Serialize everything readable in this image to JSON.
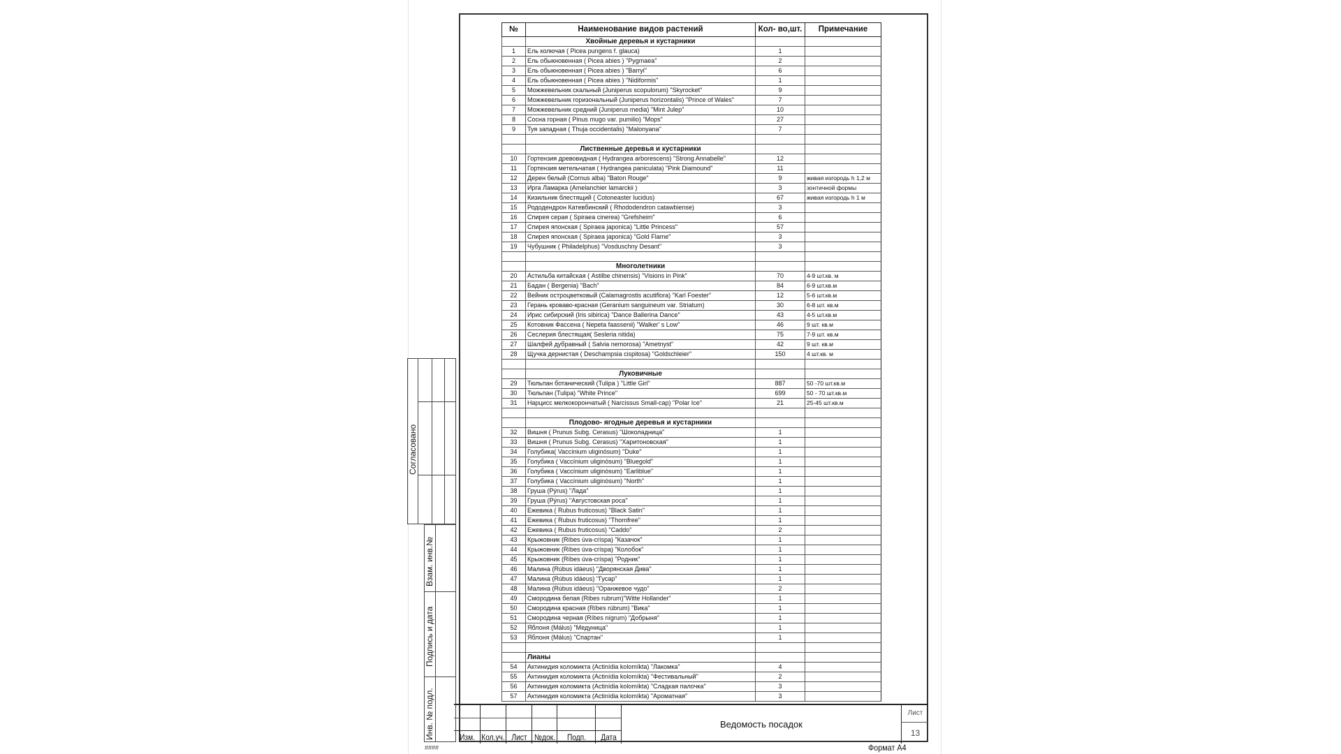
{
  "table": {
    "headers": {
      "num": "№",
      "name": "Наименование видов растений",
      "qty": "Кол- во,шт.",
      "note": "Примечание"
    },
    "sections": [
      {
        "title": "Хвойные деревья и кустарники",
        "align": "center",
        "rows": [
          [
            "1",
            "Ель колючая ( Picea pungens f. glauca)",
            "1",
            ""
          ],
          [
            "2",
            "Ель обыкновенная ( Picea abies ) \"Pygmaea\"",
            "2",
            ""
          ],
          [
            "3",
            "Ель обыкновенная ( Picea abies ) \"Barryi\"",
            "6",
            ""
          ],
          [
            "4",
            "Ель обыкновенная ( Picea abies ) \"Nidiformis\"",
            "1",
            ""
          ],
          [
            "5",
            "Можжевельник скальный (Juniperus scopulorum) \"Skyrocket\"",
            "9",
            ""
          ],
          [
            "6",
            "Можжевельник горизональный (Juniperus horizontalis) \"Prince of Wales\"",
            "7",
            ""
          ],
          [
            "7",
            "Можжевельник средний (Juniperus media) \"Mint Julep\"",
            "10",
            ""
          ],
          [
            "8",
            "Сосна горная ( Pinus mugo var. pumilio) \"Mops\"",
            "27",
            ""
          ],
          [
            "9",
            "Туя западная ( Thuja occidentalis) \"Malonyana\"",
            "7",
            ""
          ]
        ]
      },
      {
        "title": "Лиственные деревья и кустарники",
        "align": "center",
        "rows": [
          [
            "10",
            "Гортензия древовидная ( Hydrangea arborescens) \"Strong Annabelle\"",
            "12",
            ""
          ],
          [
            "11",
            "Гортензия метельчатая ( Hydrangea paniculata) \"Pink Diamound\"",
            "11",
            ""
          ],
          [
            "12",
            "Дерен белый (Cornus alba) \"Baton Rouge\"",
            "9",
            "живая изгородь h 1,2 м"
          ],
          [
            "13",
            "Ирга Ламарка (Amelanchier lamarckii )",
            "3",
            "зонтичной формы"
          ],
          [
            "14",
            "Кизильник блестящий ( Cotoneaster lucidus)",
            "67",
            "живая изгородь h 1 м"
          ],
          [
            "15",
            "Рододендрон Катевбинский  ( Rhododendron catawbiense)",
            "3",
            ""
          ],
          [
            "16",
            "Спирея серая ( Spiraea cinerea) \"Grefsheim\"",
            "6",
            ""
          ],
          [
            "17",
            "Спирея японская ( Spiraea japonica) \"Little Princess\"",
            "57",
            ""
          ],
          [
            "18",
            "Спирея японская ( Spiraea japonica) \"Gold Flame\"",
            "3",
            ""
          ],
          [
            "19",
            "Чубушник ( Philadelphus) \"Vosduschny Desant\"",
            "3",
            ""
          ]
        ]
      },
      {
        "title": "Многолетники",
        "align": "center",
        "rows": [
          [
            "20",
            "Астильба китайская ( Astilbe chinensis) \"Visions in Pink\"",
            "70",
            "4-9 шт.кв. м"
          ],
          [
            "21",
            "Бадан ( Bergenia) \"Bach\"",
            "84",
            "6-9 шт.кв.м"
          ],
          [
            "22",
            "Вейник остроцветковый (Calamagrostis acutiflora) \"Karl Foester\"",
            "12",
            "5-6 шт.кв.м"
          ],
          [
            "23",
            "Герань кроваво-красная (Geranium sanguineum var. Striatum)",
            "30",
            "6-8 шт. кв.м"
          ],
          [
            "24",
            "Ирис сибирский (Iris sibirica) \"Dance Ballerina Dance\"",
            "43",
            "4-5 шт.кв.м"
          ],
          [
            "25",
            "Котовник Фассена ( Nepeta faassenii) \"Walker' s Low\"",
            "46",
            "9 шт. кв.м"
          ],
          [
            "26",
            "Сеслерия блестящая( Sesleria nitida)",
            "75",
            "7-9 шт. кв.м"
          ],
          [
            "27",
            "Шалфей дубравный ( Salvia nemorosa) \"Ametnyst\"",
            "42",
            "9 шт. кв.м"
          ],
          [
            "28",
            "Щучка дернистая  ( Deschampsia cispitosa) \"Goldschleier\"",
            "150",
            "4 шт.кв. м"
          ]
        ]
      },
      {
        "title": "Луковичные",
        "align": "center",
        "rows": [
          [
            "29",
            "Тюльпан ботанический (Tulipa ) \"Little Girl\"",
            "887",
            "50 -70 шт.кв.м"
          ],
          [
            "30",
            "Тюльпан (Tulipa) \"White Prince\"",
            "699",
            "50 - 70 шт.кв.м"
          ],
          [
            "31",
            "Нарцисс мелкокорончатый ( Narcissus Small-cap) \"Polar Ice\"",
            "21",
            "25-45 шт.кв.м"
          ]
        ]
      },
      {
        "title": "Плодово- ягодные  деревья и кустарники",
        "align": "center",
        "rows": [
          [
            "32",
            "Вишня ( Prunus Subg. Cerasus) \"Шоколадница\"",
            "1",
            ""
          ],
          [
            "33",
            "Вишня ( Prunus Subg. Cerasus) \"Харитоновская\"",
            "1",
            ""
          ],
          [
            "34",
            "Голубика( Vaccínium uliginósum) \"Duke\"",
            "1",
            ""
          ],
          [
            "35",
            "Голубика ( Vaccínium uliginósum) \"Bluegold\"",
            "1",
            ""
          ],
          [
            "36",
            "Голубика ( Vaccínium uliginósum) \"Earliblue\"",
            "1",
            ""
          ],
          [
            "37",
            "Голубика ( Vaccínium uliginósum) \"North\"",
            "1",
            ""
          ],
          [
            "38",
            "Груша (Pýrus) \"Лада\"",
            "1",
            ""
          ],
          [
            "39",
            "Груша (Pýrus) \"Августовская роса\"",
            "1",
            ""
          ],
          [
            "40",
            "Ежевика ( Rubus fruticosus) \"Black Satin\"",
            "1",
            ""
          ],
          [
            "41",
            "Ежевика ( Rubus fruticosus) \"Thornfree\"",
            "1",
            ""
          ],
          [
            "42",
            "Ежевика ( Rubus fruticosus) \"Caddo\"",
            "2",
            ""
          ],
          [
            "43",
            "Крыжовник (Ríbes úva-críspa) \"Казачок\"",
            "1",
            ""
          ],
          [
            "44",
            "Крыжовник (Ríbes úva-críspa) \"Колобок\"",
            "1",
            ""
          ],
          [
            "45",
            "Крыжовник (Ríbes úva-críspa) \"Родник\"",
            "1",
            ""
          ],
          [
            "46",
            "Малина (Rúbus idáeus) \"Дворянская Дива\"",
            "1",
            ""
          ],
          [
            "47",
            "Малина (Rúbus idáeus) \"Гусар\"",
            "1",
            ""
          ],
          [
            "48",
            "Малина (Rúbus idáeus) \"Оранжевое чудо\"",
            "2",
            ""
          ],
          [
            "49",
            "Смородина белая (Ribes rubrum)\"Witte Hollander\"",
            "1",
            ""
          ],
          [
            "50",
            "Смородина красная (Ríbes rúbrum) \"Вика\"",
            "1",
            ""
          ],
          [
            "51",
            "Смородина черная (Ríbes nígrum) \"Добрыня\"",
            "1",
            ""
          ],
          [
            "52",
            "Яблоня (Málus) \"Медуница\"",
            "1",
            ""
          ],
          [
            "53",
            "Яблоня (Málus) \"Спартан\"",
            "1",
            ""
          ]
        ]
      },
      {
        "title": "Лианы",
        "align": "left",
        "rows": [
          [
            "54",
            "Актинидия коломикта  (Actinídia kolomíkta) \"Лакомка\"",
            "4",
            ""
          ],
          [
            "55",
            "Актинидия коломикта  (Actinídia kolomíkta) \"Фестивальный\"",
            "2",
            ""
          ],
          [
            "56",
            "Актинидия коломикта  (Actinídia kolomíkta) \"Сладкая палочка\"",
            "3",
            ""
          ],
          [
            "57",
            "Актинидия коломикта  (Actinídia kolomíkta) \"Ароматная\"",
            "3",
            ""
          ]
        ]
      }
    ]
  },
  "stamp": {
    "labels": [
      "Изм.",
      "Кол.уч.",
      "Лист",
      "№док.",
      "Подп.",
      "Дата"
    ],
    "title": "Ведомость посадок",
    "sheet_label": "Лист",
    "sheet_number": "13"
  },
  "side": {
    "agreed": "Согласовано",
    "inv_replace": "Взам. инв.№",
    "sign_date": "Подпись и дата",
    "inv_orig": "Инв. № подл."
  },
  "footer": {
    "hash": "####",
    "format": "Формат А4"
  }
}
